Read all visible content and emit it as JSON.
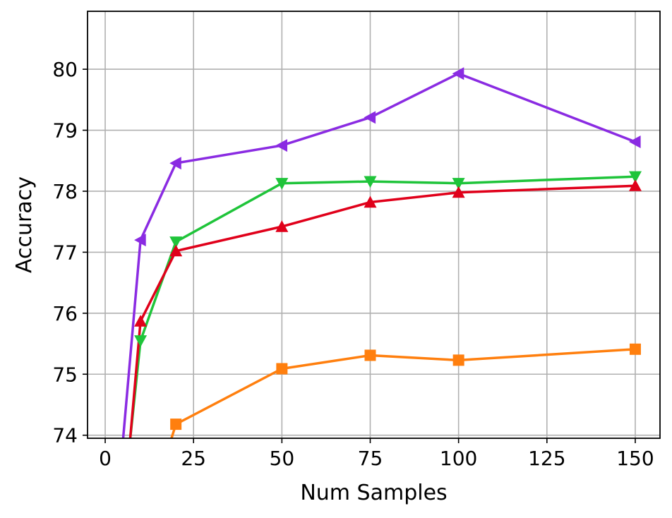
{
  "chart_data": {
    "type": "line",
    "title": "",
    "xlabel": "Num Samples",
    "ylabel": "Accuracy",
    "xlim": [
      -5,
      157
    ],
    "ylim": [
      73.95,
      80.95
    ],
    "xticks": [
      0,
      25,
      50,
      75,
      100,
      125,
      150
    ],
    "yticks": [
      74,
      75,
      76,
      77,
      78,
      79,
      80
    ],
    "grid": true,
    "legend": "none",
    "series": [
      {
        "color": "#8a2be2",
        "marker": "triangle-left",
        "x": [
          5,
          10,
          20,
          50,
          75,
          100,
          150
        ],
        "y": [
          73.9,
          77.2,
          78.46,
          78.75,
          79.21,
          79.93,
          78.81
        ]
      },
      {
        "color": "#1fc43a",
        "marker": "triangle-down",
        "x": [
          7,
          10,
          20,
          50,
          75,
          100,
          150
        ],
        "y": [
          73.9,
          75.55,
          77.17,
          78.13,
          78.16,
          78.13,
          78.24
        ]
      },
      {
        "color": "#e0001a",
        "marker": "triangle-up",
        "x": [
          7,
          10,
          20,
          50,
          75,
          100,
          150
        ],
        "y": [
          73.9,
          75.87,
          77.02,
          77.42,
          77.82,
          77.98,
          78.09
        ]
      },
      {
        "color": "#ff7f0e",
        "marker": "square",
        "x": [
          18.5,
          20,
          50,
          75,
          100,
          150
        ],
        "y": [
          73.9,
          74.18,
          75.09,
          75.31,
          75.23,
          75.41
        ]
      }
    ]
  }
}
